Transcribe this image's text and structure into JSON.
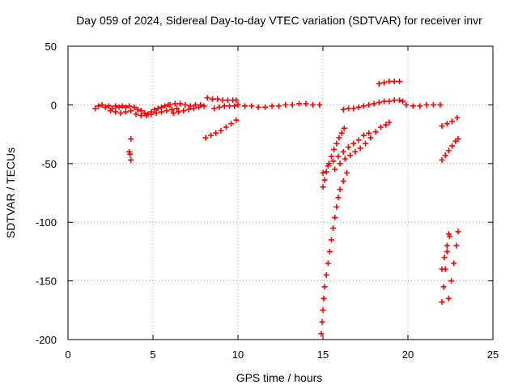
{
  "chart_data": {
    "type": "scatter",
    "title": "Day 059 of 2024, Sidereal Day-to-day VTEC variation (SDTVAR) for receiver invr",
    "xlabel": "GPS time / hours",
    "ylabel": "SDTVAR / TECUs",
    "xlim": [
      0,
      25
    ],
    "ylim": [
      -200,
      50
    ],
    "xticks": [
      "0",
      "5",
      "10",
      "15",
      "20",
      "25"
    ],
    "yticks": [
      "50",
      "0",
      "-50",
      "-100",
      "-150",
      "-200"
    ],
    "grid": true,
    "legend": "none",
    "marker": "plus",
    "color": "#ff0000",
    "series": [
      {
        "values": [
          [
            1.6,
            -3
          ],
          [
            1.8,
            -1
          ],
          [
            2.0,
            0
          ],
          [
            2.2,
            -2
          ],
          [
            2.4,
            -1
          ],
          [
            2.6,
            -3
          ],
          [
            2.8,
            -1
          ],
          [
            3.0,
            -2
          ],
          [
            3.2,
            -1
          ],
          [
            3.4,
            -2
          ],
          [
            3.6,
            -1
          ],
          [
            2.5,
            -5
          ],
          [
            2.8,
            -6
          ],
          [
            3.1,
            -7
          ],
          [
            3.4,
            -6
          ],
          [
            3.7,
            -5
          ],
          [
            3.7,
            -29
          ],
          [
            3.6,
            -40
          ],
          [
            3.65,
            -42
          ],
          [
            3.7,
            -47
          ],
          [
            3.9,
            -2
          ],
          [
            4.1,
            -4
          ],
          [
            4.3,
            -5
          ],
          [
            4.5,
            -7
          ],
          [
            4.7,
            -8
          ],
          [
            4.9,
            -6
          ],
          [
            5.1,
            -4
          ],
          [
            5.3,
            -3
          ],
          [
            5.5,
            -2
          ],
          [
            5.7,
            -1
          ],
          [
            5.9,
            0
          ],
          [
            4.0,
            -8
          ],
          [
            4.3,
            -9
          ],
          [
            4.6,
            -9
          ],
          [
            4.9,
            -8
          ],
          [
            5.2,
            -7
          ],
          [
            5.5,
            -6
          ],
          [
            5.8,
            -5
          ],
          [
            6.1,
            -4
          ],
          [
            6.4,
            -3
          ],
          [
            6.0,
            0
          ],
          [
            6.3,
            1
          ],
          [
            6.6,
            1
          ],
          [
            6.9,
            0
          ],
          [
            7.2,
            -1
          ],
          [
            7.5,
            0
          ],
          [
            7.8,
            0
          ],
          [
            6.2,
            -7
          ],
          [
            6.5,
            -6
          ],
          [
            6.8,
            -5
          ],
          [
            7.1,
            -4
          ],
          [
            7.4,
            -3
          ],
          [
            7.7,
            -2
          ],
          [
            8.0,
            -1
          ],
          [
            8.2,
            6
          ],
          [
            8.5,
            5
          ],
          [
            8.8,
            5
          ],
          [
            9.1,
            4
          ],
          [
            9.4,
            4
          ],
          [
            9.7,
            4
          ],
          [
            9.9,
            4
          ],
          [
            8.6,
            -3
          ],
          [
            8.9,
            -2
          ],
          [
            9.2,
            -1
          ],
          [
            9.5,
            -1
          ],
          [
            9.8,
            -1
          ],
          [
            8.1,
            -28
          ],
          [
            8.4,
            -26
          ],
          [
            8.7,
            -24
          ],
          [
            9.0,
            -22
          ],
          [
            9.3,
            -19
          ],
          [
            9.6,
            -16
          ],
          [
            9.9,
            -13
          ],
          [
            10.0,
            0
          ],
          [
            10.4,
            -1
          ],
          [
            10.8,
            -1
          ],
          [
            11.2,
            -2
          ],
          [
            11.6,
            -2
          ],
          [
            12.0,
            -1
          ],
          [
            12.4,
            -1
          ],
          [
            12.8,
            0
          ],
          [
            13.2,
            0
          ],
          [
            13.6,
            1
          ],
          [
            14.0,
            1
          ],
          [
            14.4,
            0
          ],
          [
            14.8,
            0
          ],
          [
            15.0,
            -70
          ],
          [
            15.1,
            -64
          ],
          [
            15.2,
            -57
          ],
          [
            15.35,
            -50
          ],
          [
            15.5,
            -44
          ],
          [
            15.65,
            -38
          ],
          [
            15.8,
            -33
          ],
          [
            15.95,
            -28
          ],
          [
            16.1,
            -24
          ],
          [
            16.25,
            -20
          ],
          [
            15.0,
            -58
          ],
          [
            15.3,
            -52
          ],
          [
            15.6,
            -48
          ],
          [
            15.9,
            -44
          ],
          [
            16.2,
            -40
          ],
          [
            16.5,
            -36
          ],
          [
            16.8,
            -33
          ],
          [
            17.1,
            -30
          ],
          [
            17.4,
            -26
          ],
          [
            17.7,
            -24
          ],
          [
            15.7,
            -55
          ],
          [
            16.0,
            -50
          ],
          [
            16.3,
            -46
          ],
          [
            16.6,
            -43
          ],
          [
            16.9,
            -40
          ],
          [
            17.2,
            -37
          ],
          [
            17.5,
            -33
          ],
          [
            17.8,
            -28
          ],
          [
            18.1,
            -23
          ],
          [
            18.4,
            -19
          ],
          [
            18.7,
            -17
          ],
          [
            18.9,
            -15
          ],
          [
            14.9,
            -195
          ],
          [
            14.95,
            -185
          ],
          [
            15.0,
            -175
          ],
          [
            15.05,
            -165
          ],
          [
            15.1,
            -155
          ],
          [
            15.2,
            -145
          ],
          [
            15.3,
            -135
          ],
          [
            15.4,
            -125
          ],
          [
            15.5,
            -115
          ],
          [
            15.6,
            -105
          ],
          [
            15.7,
            -96
          ],
          [
            15.8,
            -87
          ],
          [
            15.9,
            -79
          ],
          [
            16.0,
            -72
          ],
          [
            16.2,
            -65
          ],
          [
            16.4,
            -58
          ],
          [
            16.2,
            -4
          ],
          [
            16.5,
            -3
          ],
          [
            16.8,
            -3
          ],
          [
            17.1,
            -2
          ],
          [
            17.4,
            -1
          ],
          [
            17.7,
            0
          ],
          [
            18.0,
            1
          ],
          [
            18.3,
            2
          ],
          [
            18.6,
            3
          ],
          [
            18.9,
            3
          ],
          [
            19.2,
            4
          ],
          [
            19.5,
            4
          ],
          [
            19.7,
            3
          ],
          [
            18.3,
            18
          ],
          [
            18.6,
            19
          ],
          [
            18.9,
            20
          ],
          [
            19.2,
            20
          ],
          [
            19.5,
            20
          ],
          [
            19.9,
            0
          ],
          [
            20.3,
            -1
          ],
          [
            20.7,
            -1
          ],
          [
            21.1,
            0
          ],
          [
            21.5,
            0
          ],
          [
            21.9,
            0
          ],
          [
            22.0,
            -18
          ],
          [
            22.3,
            -16
          ],
          [
            22.6,
            -14
          ],
          [
            22.9,
            -11
          ],
          [
            22.0,
            -47
          ],
          [
            22.2,
            -43
          ],
          [
            22.4,
            -39
          ],
          [
            22.6,
            -35
          ],
          [
            22.8,
            -31
          ],
          [
            22.95,
            -29
          ],
          [
            22.0,
            -168
          ],
          [
            22.1,
            -155
          ],
          [
            22.2,
            -140
          ],
          [
            22.3,
            -125
          ],
          [
            22.4,
            -110
          ],
          [
            22.0,
            -140
          ],
          [
            22.15,
            -130
          ],
          [
            22.3,
            -120
          ],
          [
            22.45,
            -112
          ],
          [
            22.4,
            -165
          ],
          [
            22.55,
            -150
          ],
          [
            22.7,
            -135
          ],
          [
            22.85,
            -120
          ],
          [
            22.95,
            -108
          ]
        ]
      }
    ]
  }
}
